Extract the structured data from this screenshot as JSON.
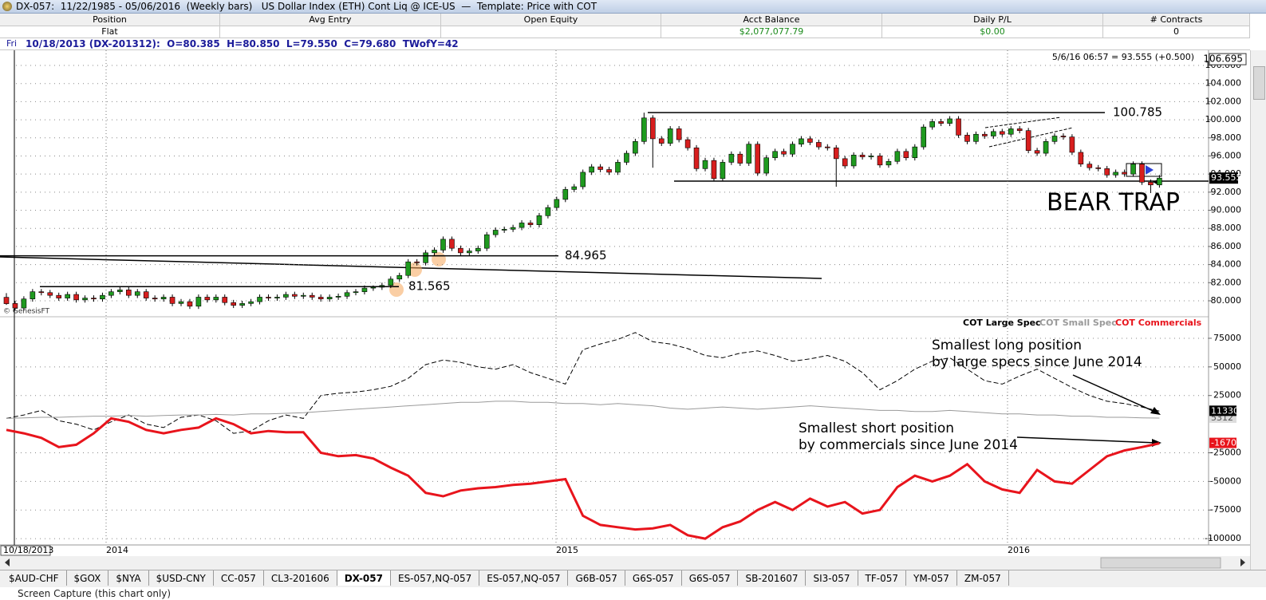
{
  "window_title": "DX-057:  11/22/1985 - 05/06/2016  (Weekly bars)   US Dollar Index (ETH) Cont Liq @ ICE-US  —  Template: Price with COT",
  "positions": {
    "columns": [
      {
        "header": "Position",
        "value": "Flat"
      },
      {
        "header": "Avg Entry"
      },
      {
        "header": "Open Equity"
      },
      {
        "header": "Acct Balance",
        "value": "$2,077,077.79"
      },
      {
        "header": "Daily P/L",
        "value": "$0.00"
      },
      {
        "header": "# Contracts",
        "value": 0
      }
    ]
  },
  "info": {
    "day": "Fri",
    "bar": "10/18/2013 (DX-201312):  O=80.385  H=80.850  L=79.550  C=79.680  TWofY=42"
  },
  "chart_data": [
    {
      "type": "candlestick",
      "quote": "5/6/16 06:57 = 93.555 (+0.500)",
      "top_value": 106.695,
      "last_value": 93.555,
      "copyright": "© GenesisFT",
      "annotation": "BEAR TRAP",
      "up_color": "#1f9a1f",
      "down_color": "#d71e1e",
      "grid": true,
      "ylim": [
        78.5,
        107.5
      ],
      "yticks": [
        {
          "value": 80,
          "label": "80.000"
        },
        {
          "value": 82,
          "label": "82.000"
        },
        {
          "value": 84,
          "label": "84.000"
        },
        {
          "value": 86,
          "label": "86.000"
        },
        {
          "value": 88,
          "label": "88.000"
        },
        {
          "value": 90,
          "label": "90.000"
        },
        {
          "value": 92,
          "label": "92.000"
        },
        {
          "value": 94,
          "label": "94.000"
        },
        {
          "value": 96,
          "label": "96.000"
        },
        {
          "value": 98,
          "label": "98.000"
        },
        {
          "value": 100,
          "label": "100.000"
        },
        {
          "value": 102,
          "label": "102.000"
        },
        {
          "value": 104,
          "label": "104.000"
        },
        {
          "value": 106,
          "label": "106.000"
        }
      ],
      "levels": [
        100.785,
        84.965,
        81.565
      ],
      "candles": [
        [
          80.385,
          80.85,
          79.55,
          79.68
        ],
        [
          79.7,
          80.0,
          78.9,
          79.2
        ],
        [
          79.2,
          80.5,
          78.9,
          80.2
        ],
        [
          80.2,
          81.3,
          79.9,
          81.0
        ],
        [
          81.0,
          81.3,
          80.6,
          80.9
        ],
        [
          80.9,
          81.2,
          80.3,
          80.6
        ],
        [
          80.6,
          80.9,
          80.0,
          80.3
        ],
        [
          80.3,
          81.0,
          80.0,
          80.7
        ],
        [
          80.7,
          81.0,
          79.8,
          80.1
        ],
        [
          80.1,
          80.6,
          79.8,
          80.3
        ],
        [
          80.3,
          80.6,
          79.9,
          80.2
        ],
        [
          80.2,
          80.9,
          79.9,
          80.6
        ],
        [
          80.6,
          81.3,
          80.3,
          81.0
        ],
        [
          81.0,
          81.5,
          80.7,
          81.2
        ],
        [
          81.2,
          81.5,
          80.3,
          80.6
        ],
        [
          80.6,
          81.3,
          80.3,
          81.0
        ],
        [
          81.0,
          81.3,
          80.0,
          80.3
        ],
        [
          80.3,
          80.6,
          79.9,
          80.2
        ],
        [
          80.2,
          80.7,
          79.9,
          80.4
        ],
        [
          80.4,
          80.7,
          79.4,
          79.7
        ],
        [
          79.7,
          80.2,
          79.4,
          79.9
        ],
        [
          79.9,
          80.2,
          79.1,
          79.4
        ],
        [
          79.4,
          80.7,
          79.1,
          80.4
        ],
        [
          80.4,
          80.7,
          79.8,
          80.1
        ],
        [
          80.1,
          80.7,
          79.8,
          80.4
        ],
        [
          80.4,
          80.7,
          79.5,
          79.8
        ],
        [
          79.8,
          80.1,
          79.2,
          79.5
        ],
        [
          79.5,
          80.0,
          79.2,
          79.7
        ],
        [
          79.7,
          80.2,
          79.4,
          79.9
        ],
        [
          79.9,
          80.7,
          79.6,
          80.4
        ],
        [
          80.4,
          80.7,
          80.0,
          80.3
        ],
        [
          80.3,
          80.7,
          80.0,
          80.4
        ],
        [
          80.4,
          81.0,
          80.1,
          80.7
        ],
        [
          80.7,
          81.0,
          80.2,
          80.5
        ],
        [
          80.5,
          80.9,
          80.2,
          80.6
        ],
        [
          80.6,
          80.9,
          80.1,
          80.4
        ],
        [
          80.4,
          80.7,
          79.9,
          80.2
        ],
        [
          80.2,
          80.7,
          79.9,
          80.4
        ],
        [
          80.4,
          80.8,
          80.1,
          80.5
        ],
        [
          80.5,
          81.2,
          80.2,
          80.9
        ],
        [
          80.9,
          81.3,
          80.6,
          81.0
        ],
        [
          81.0,
          81.7,
          80.7,
          81.4
        ],
        [
          81.4,
          81.7,
          81.1,
          81.5
        ],
        [
          81.5,
          82.0,
          81.2,
          81.7
        ],
        [
          81.7,
          82.7,
          81.4,
          82.4
        ],
        [
          82.4,
          83.1,
          82.1,
          82.8
        ],
        [
          82.8,
          84.6,
          82.5,
          84.3
        ],
        [
          84.3,
          84.6,
          83.9,
          84.2
        ],
        [
          84.2,
          85.6,
          83.9,
          85.3
        ],
        [
          85.3,
          85.9,
          85.0,
          85.6
        ],
        [
          85.6,
          87.1,
          85.3,
          86.8
        ],
        [
          86.8,
          87.1,
          85.5,
          85.8
        ],
        [
          85.8,
          86.1,
          85.0,
          85.3
        ],
        [
          85.3,
          85.8,
          85.0,
          85.5
        ],
        [
          85.5,
          86.1,
          85.2,
          85.8
        ],
        [
          85.8,
          87.6,
          85.5,
          87.3
        ],
        [
          87.3,
          88.1,
          87.0,
          87.8
        ],
        [
          87.8,
          88.2,
          87.5,
          87.9
        ],
        [
          87.9,
          88.4,
          87.6,
          88.1
        ],
        [
          88.1,
          88.9,
          87.8,
          88.6
        ],
        [
          88.6,
          88.9,
          88.1,
          88.4
        ],
        [
          88.4,
          89.7,
          88.1,
          89.4
        ],
        [
          89.4,
          90.6,
          89.1,
          90.3
        ],
        [
          90.3,
          91.5,
          90.0,
          91.2
        ],
        [
          91.2,
          92.6,
          90.9,
          92.3
        ],
        [
          92.3,
          92.9,
          92.0,
          92.6
        ],
        [
          92.6,
          94.5,
          92.3,
          94.2
        ],
        [
          94.2,
          95.1,
          93.9,
          94.8
        ],
        [
          94.8,
          95.1,
          94.2,
          94.5
        ],
        [
          94.5,
          94.8,
          93.9,
          94.2
        ],
        [
          94.2,
          95.6,
          93.9,
          95.3
        ],
        [
          95.3,
          96.6,
          95.0,
          96.3
        ],
        [
          96.3,
          97.9,
          96.0,
          97.6
        ],
        [
          97.6,
          100.785,
          97.3,
          100.2
        ],
        [
          100.2,
          100.5,
          94.7,
          97.9
        ],
        [
          97.9,
          98.2,
          97.1,
          97.4
        ],
        [
          97.4,
          99.3,
          97.1,
          99.0
        ],
        [
          99.0,
          99.3,
          97.5,
          97.8
        ],
        [
          97.8,
          98.1,
          96.6,
          96.9
        ],
        [
          96.9,
          97.2,
          94.3,
          94.6
        ],
        [
          94.6,
          95.8,
          94.3,
          95.5
        ],
        [
          95.5,
          95.8,
          93.2,
          93.5
        ],
        [
          93.5,
          95.6,
          93.2,
          95.3
        ],
        [
          95.3,
          96.5,
          95.0,
          96.2
        ],
        [
          96.2,
          96.5,
          94.9,
          95.2
        ],
        [
          95.2,
          97.6,
          94.9,
          97.3
        ],
        [
          97.3,
          97.6,
          93.8,
          94.1
        ],
        [
          94.1,
          96.1,
          93.8,
          95.8
        ],
        [
          95.8,
          96.8,
          95.5,
          96.5
        ],
        [
          96.5,
          96.8,
          95.9,
          96.2
        ],
        [
          96.2,
          97.6,
          95.9,
          97.3
        ],
        [
          97.3,
          98.2,
          97.0,
          97.9
        ],
        [
          97.9,
          98.2,
          97.2,
          97.5
        ],
        [
          97.5,
          97.8,
          96.7,
          97.0
        ],
        [
          97.0,
          97.3,
          96.6,
          96.9
        ],
        [
          96.9,
          97.2,
          92.6,
          95.7
        ],
        [
          95.7,
          96.0,
          94.6,
          94.9
        ],
        [
          94.9,
          96.4,
          94.6,
          96.1
        ],
        [
          96.1,
          96.4,
          95.6,
          95.9
        ],
        [
          95.9,
          96.3,
          95.6,
          96.0
        ],
        [
          96.0,
          96.3,
          94.7,
          95.0
        ],
        [
          95.0,
          95.7,
          94.7,
          95.4
        ],
        [
          95.4,
          96.8,
          95.1,
          96.5
        ],
        [
          96.5,
          96.8,
          95.5,
          95.8
        ],
        [
          95.8,
          97.3,
          95.5,
          97.0
        ],
        [
          97.0,
          99.5,
          96.7,
          99.2
        ],
        [
          99.2,
          100.1,
          98.9,
          99.8
        ],
        [
          99.8,
          100.1,
          99.3,
          99.6
        ],
        [
          99.6,
          100.4,
          99.3,
          100.1
        ],
        [
          100.1,
          100.4,
          98.0,
          98.3
        ],
        [
          98.3,
          98.6,
          97.3,
          97.6
        ],
        [
          97.6,
          98.7,
          97.3,
          98.4
        ],
        [
          98.4,
          98.7,
          97.9,
          98.2
        ],
        [
          98.2,
          99.0,
          97.9,
          98.7
        ],
        [
          98.7,
          99.0,
          98.1,
          98.4
        ],
        [
          98.4,
          99.3,
          98.1,
          99.0
        ],
        [
          99.0,
          99.3,
          98.5,
          98.8
        ],
        [
          98.8,
          99.1,
          96.3,
          96.6
        ],
        [
          96.6,
          96.9,
          96.0,
          96.3
        ],
        [
          96.3,
          97.9,
          96.0,
          97.6
        ],
        [
          97.6,
          98.5,
          97.3,
          98.2
        ],
        [
          98.2,
          98.5,
          97.8,
          98.1
        ],
        [
          98.1,
          98.4,
          96.1,
          96.4
        ],
        [
          96.4,
          96.7,
          94.8,
          95.1
        ],
        [
          95.1,
          95.4,
          94.4,
          94.7
        ],
        [
          94.7,
          95.0,
          94.3,
          94.6
        ],
        [
          94.6,
          94.9,
          93.6,
          93.9
        ],
        [
          93.9,
          94.5,
          93.6,
          94.2
        ],
        [
          94.2,
          94.5,
          93.7,
          94.0
        ],
        [
          94.0,
          95.4,
          93.7,
          95.1
        ],
        [
          95.1,
          95.4,
          92.8,
          93.1
        ],
        [
          93.1,
          93.4,
          91.9,
          92.8
        ],
        [
          92.8,
          93.9,
          92.5,
          93.555
        ]
      ]
    },
    {
      "type": "line",
      "grid": true,
      "ylim": [
        -102000,
        91000
      ],
      "yticks": [
        75000,
        50000,
        25000,
        -25000,
        -50000,
        -75000,
        -100000
      ],
      "annotations": [
        [
          "Smallest long position",
          "by large specs since June 2014"
        ],
        [
          "Smallest short position",
          "by commercials since June 2014"
        ]
      ],
      "series": [
        {
          "name": "COT Large Spec",
          "color": "#000000",
          "dash": true,
          "values": [
            5000,
            8000,
            12000,
            3000,
            0,
            -5000,
            2000,
            8000,
            0,
            -3000,
            6000,
            8000,
            3000,
            -8000,
            -6000,
            3000,
            8000,
            5000,
            25000,
            27000,
            28000,
            30000,
            33000,
            40000,
            52000,
            56000,
            54000,
            50000,
            48000,
            52000,
            45000,
            40000,
            35000,
            65000,
            70000,
            74000,
            80000,
            72000,
            70000,
            66000,
            60000,
            58000,
            62000,
            64000,
            60000,
            55000,
            57000,
            60000,
            55000,
            45000,
            30000,
            38000,
            48000,
            55000,
            58000,
            48000,
            38000,
            35000,
            42000,
            48000,
            40000,
            32000,
            25000,
            20000,
            18000,
            15000,
            11330
          ]
        },
        {
          "name": "COT Small Spec",
          "color": "#9a9a9a",
          "dash": false,
          "values": [
            5000,
            5500,
            6000,
            6000,
            6500,
            7000,
            7000,
            7500,
            7000,
            7500,
            8000,
            8000,
            8500,
            8000,
            9000,
            9000,
            9500,
            10000,
            11000,
            12000,
            13000,
            14000,
            15000,
            16000,
            17000,
            18000,
            19000,
            19000,
            20000,
            20000,
            19000,
            19000,
            18000,
            18000,
            17000,
            18000,
            17000,
            16000,
            14000,
            13000,
            14000,
            15000,
            14000,
            13000,
            14000,
            15000,
            16000,
            15000,
            14000,
            13000,
            12000,
            12000,
            11000,
            11000,
            12000,
            11000,
            10000,
            9000,
            9000,
            8000,
            8000,
            7000,
            7000,
            6000,
            6000,
            5500,
            5312
          ]
        },
        {
          "name": "COT Commercials",
          "color": "#e8141c",
          "dash": false,
          "values": [
            -5000,
            -8000,
            -12000,
            -20000,
            -18000,
            -8000,
            5000,
            2000,
            -5000,
            -8000,
            -5000,
            -3000,
            5000,
            0,
            -8000,
            -6000,
            -7000,
            -7000,
            -25000,
            -28000,
            -27000,
            -30000,
            -38000,
            -45000,
            -60000,
            -63000,
            -58000,
            -56000,
            -55000,
            -53000,
            -52000,
            -50000,
            -48000,
            -80000,
            -88000,
            -90000,
            -92000,
            -91000,
            -88000,
            -97000,
            -100000,
            -90000,
            -85000,
            -75000,
            -68000,
            -75000,
            -65000,
            -72000,
            -68000,
            -78000,
            -75000,
            -55000,
            -45000,
            -50000,
            -45000,
            -35000,
            -50000,
            -57000,
            -60000,
            -40000,
            -50000,
            -52000,
            -40000,
            -28000,
            -23000,
            -20000,
            -16704
          ]
        }
      ]
    }
  ],
  "time_axis": {
    "first": "10/18/2013",
    "years": [
      2014,
      2015,
      2016
    ]
  },
  "tabs": {
    "items": [
      "$AUD-CHF",
      "$GOX",
      "$NYA",
      "$USD-CNY",
      "CC-057",
      "CL3-201606",
      "DX-057",
      "ES-057,NQ-057",
      "ES-057,NQ-057",
      "G6B-057",
      "G6S-057",
      "G6S-057",
      "SB-201607",
      "SI3-057",
      "TF-057",
      "YM-057",
      "ZM-057"
    ],
    "active": "DX-057"
  },
  "status": "Screen Capture (this chart only)"
}
